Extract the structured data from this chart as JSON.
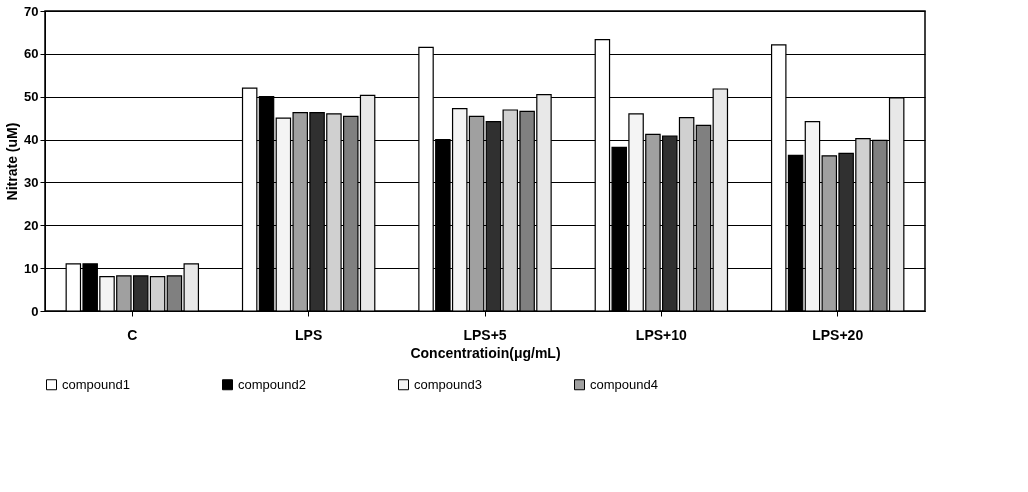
{
  "chart_data": {
    "type": "bar",
    "xlabel": "Concentratioin(μg/mL)",
    "ylabel": "Nitrate (uM)",
    "categories": [
      "C",
      "LPS",
      "LPS+5",
      "LPS+10",
      "LPS+20"
    ],
    "series": [
      {
        "name": "compound1",
        "color": "#ffffff",
        "values": [
          11,
          52,
          61.5,
          63.3,
          62.1
        ]
      },
      {
        "name": "compound2",
        "color": "#000000",
        "values": [
          11,
          50,
          40,
          38.2,
          36.3
        ]
      },
      {
        "name": "compound3",
        "color": "#f4f4f4",
        "values": [
          8,
          45,
          47.2,
          46,
          44.2
        ]
      },
      {
        "name": "compound4",
        "color": "#a0a0a0",
        "values": [
          8.2,
          46.3,
          45.4,
          41.2,
          36.2
        ]
      },
      {
        "color": "#303030",
        "values": [
          8.2,
          46.3,
          44.2,
          40.8,
          36.8
        ]
      },
      {
        "color": "#d0d0d0",
        "values": [
          8,
          46,
          46.9,
          45.1,
          40.2
        ]
      },
      {
        "color": "#808080",
        "values": [
          8.2,
          45.4,
          46.6,
          43.3,
          39.8
        ]
      },
      {
        "color": "#e8e8e8",
        "values": [
          11,
          50.3,
          50.5,
          51.8,
          49.7
        ]
      }
    ],
    "ylim": [
      0,
      70
    ],
    "yticks": [
      0,
      10,
      20,
      30,
      40,
      50,
      60,
      70
    ],
    "grid": "y",
    "legend": "bottom"
  }
}
